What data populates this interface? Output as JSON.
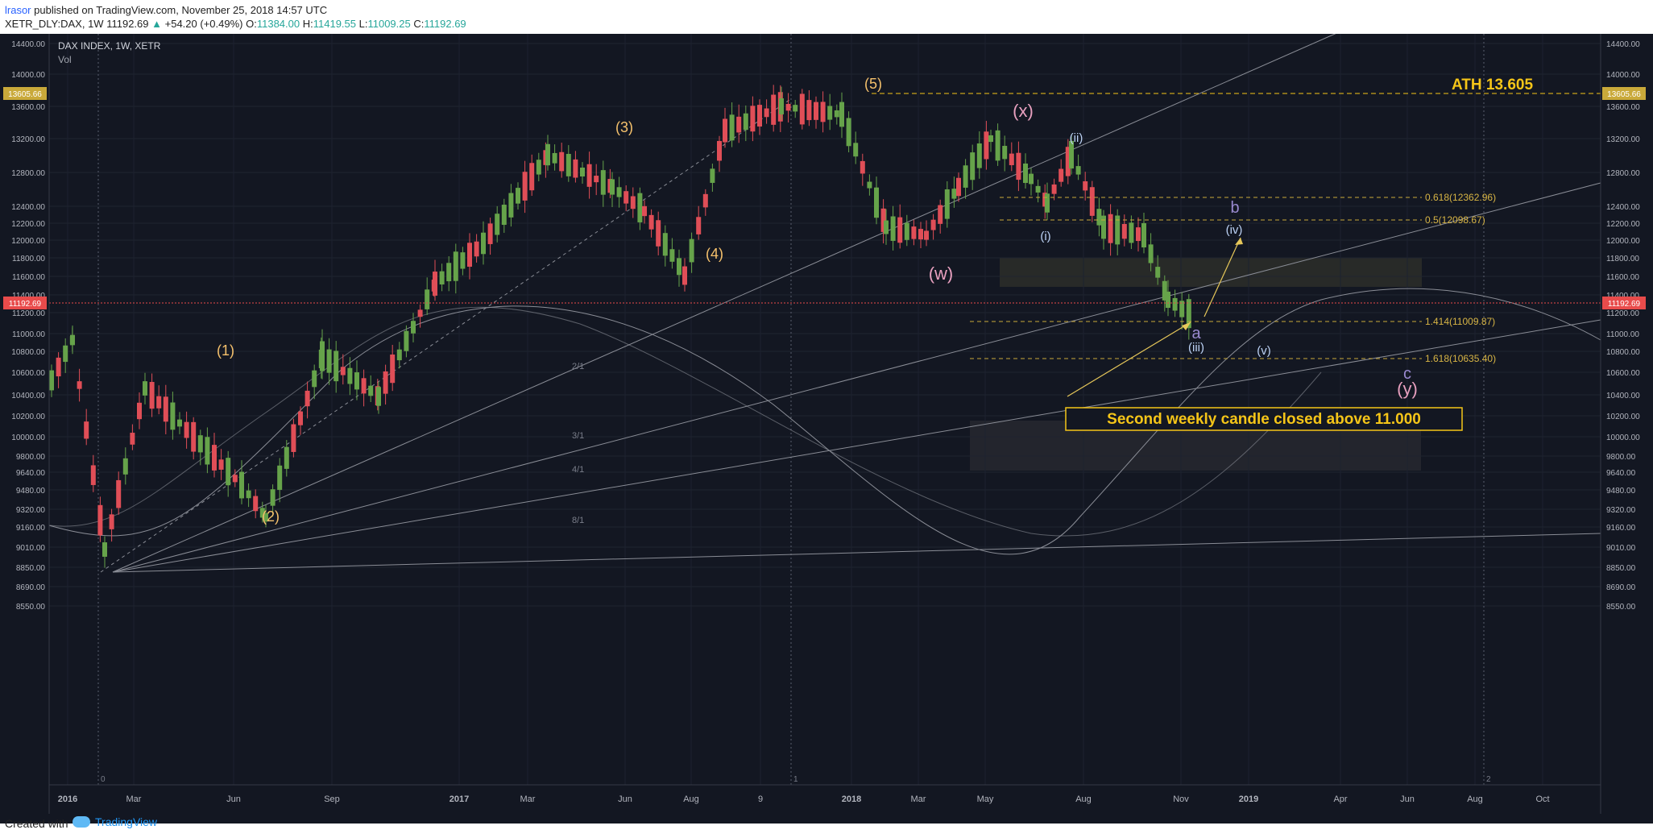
{
  "header": {
    "username": "lrasor",
    "published_text": " published on TradingView.com, November 25, 2018 14:57 UTC",
    "symbol": "XETR_DLY:DAX, 1W",
    "last": "11192.69",
    "change": "+54.20 (+0.49%)",
    "open_label": "O:",
    "open": "11384.00",
    "high_label": "H:",
    "high": "11419.55",
    "low_label": "L:",
    "low": "11009.25",
    "close_label": "C:",
    "close": "11192.69"
  },
  "legend": {
    "title": "DAX INDEX, 1W, XETR",
    "volume_label": "Vol"
  },
  "axes": {
    "y_ticks": [
      "14400.00",
      "14000.00",
      "13600.00",
      "13200.00",
      "12800.00",
      "12400.00",
      "12200.00",
      "12000.00",
      "11800.00",
      "11600.00",
      "11400.00",
      "11200.00",
      "11000.00",
      "10800.00",
      "10600.00",
      "10400.00",
      "10200.00",
      "10000.00",
      "9800.00",
      "9640.00",
      "9480.00",
      "9320.00",
      "9160.00",
      "9010.00",
      "8850.00",
      "8690.00",
      "8550.00"
    ],
    "x_ticks": [
      "2016",
      "Mar",
      "Jun",
      "Sep",
      "2017",
      "Mar",
      "Jun",
      "Aug",
      "9",
      "2018",
      "Mar",
      "May",
      "Aug",
      "Nov",
      "2019",
      "Apr",
      "Jun",
      "Aug",
      "Oct"
    ],
    "ath_tag": "13605.66",
    "price_tag": "11192.69",
    "cycle_markers": [
      "0",
      "1",
      "2"
    ]
  },
  "annotations": {
    "ath_label": "ATH 13.605",
    "fib_618": "0.618(12362.96)",
    "fib_05": "0.5(12098.67)",
    "fib_1414": "1.414(11009.87)",
    "fib_1618": "1.618(10635.40)",
    "callout": "Second weekly candle closed above 11.000",
    "waves": {
      "w1": "(1)",
      "w2": "(2)",
      "w3": "(3)",
      "w4": "(4)",
      "w5": "(5)",
      "ww": "(w)",
      "wx": "(x)",
      "wy": "(y)",
      "wi": "(i)",
      "wii": "(ii)",
      "wiii": "(iii)",
      "wiv": "(iv)",
      "wv": "(v)",
      "wa": "a",
      "wb": "b",
      "wc": "c"
    },
    "fan_labels": [
      "2/1",
      "3/1",
      "4/1",
      "8/1"
    ]
  },
  "footer": {
    "created_with": "Created with",
    "brand": "TradingView"
  },
  "colors": {
    "background": "#131722",
    "up": "#66a34a",
    "down": "#e04e57",
    "wave_orange": "#f5c16c",
    "wave_pink": "#e8a0bf",
    "wave_blue": "#bcd2f5",
    "wave_purple": "#9a8ad0",
    "ath": "#f5c518",
    "price_line": "#e84b4b"
  }
}
